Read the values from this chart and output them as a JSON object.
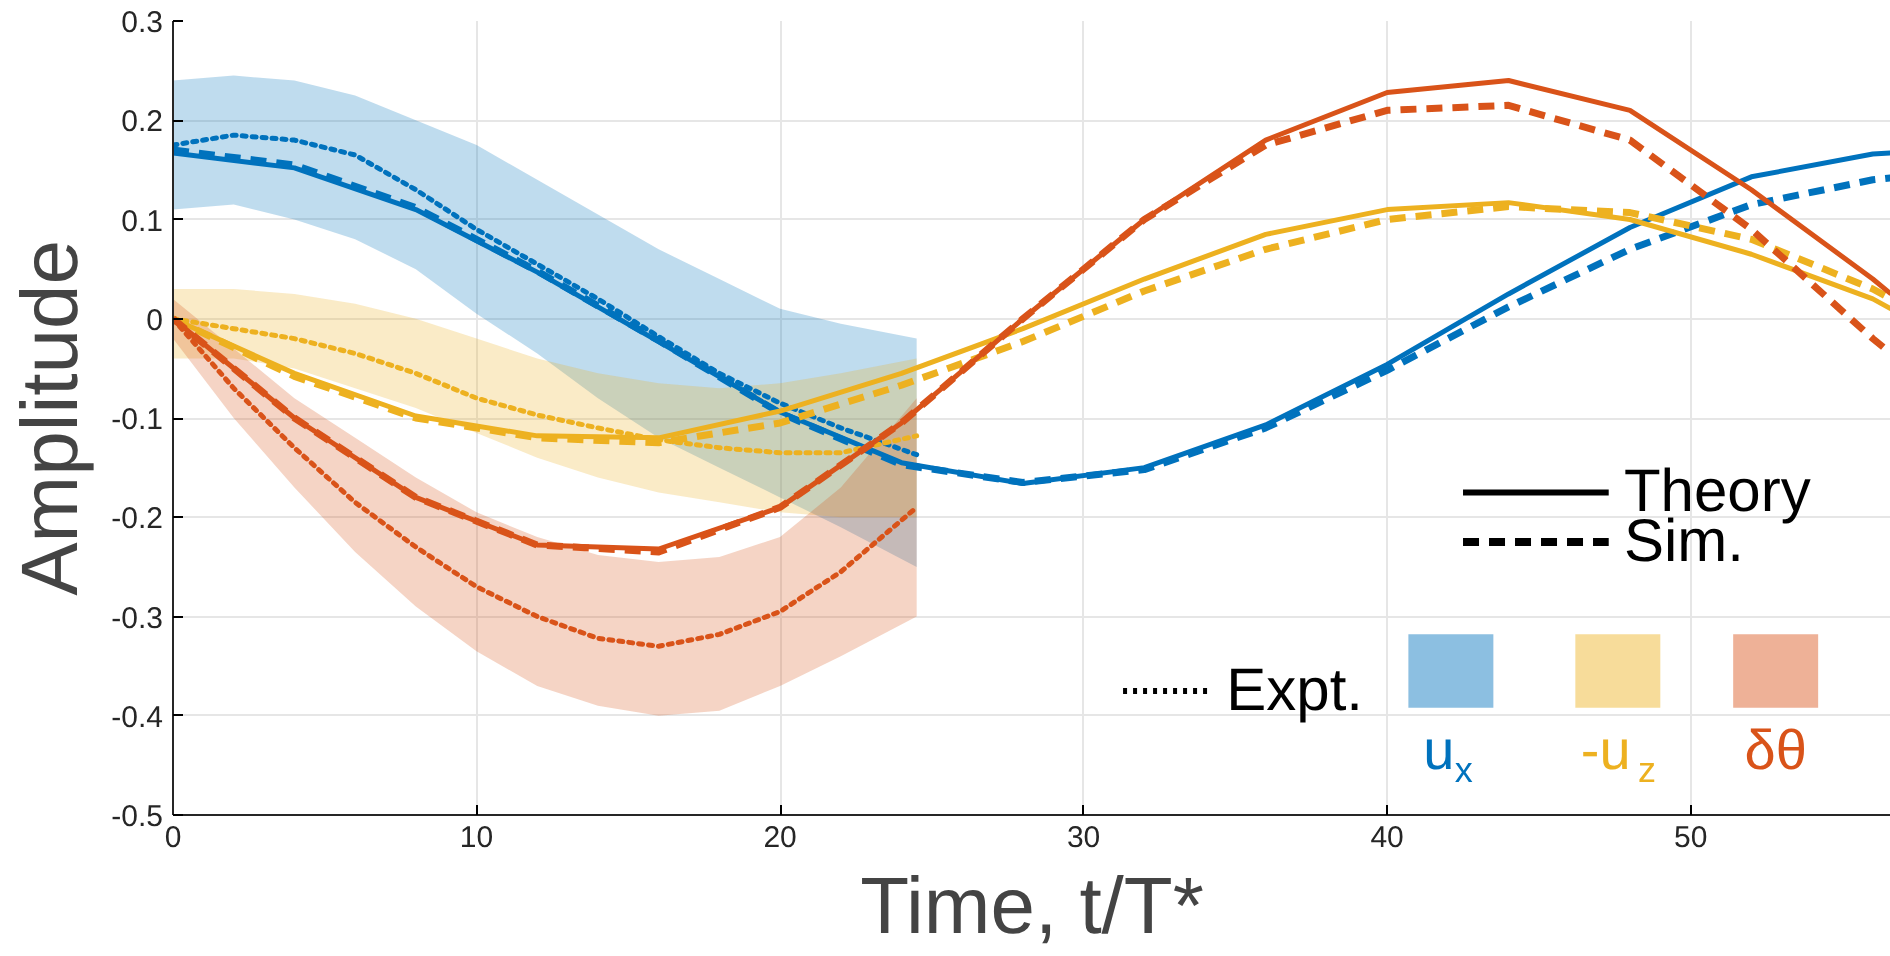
{
  "chart_data": {
    "type": "line",
    "xlabel": "Time, t/T*",
    "ylabel": "Amplitude",
    "xlim": [
      0,
      56.6
    ],
    "ylim": [
      -0.5,
      0.3
    ],
    "xticks": [
      0,
      10,
      20,
      30,
      40,
      50
    ],
    "yticks": [
      -0.5,
      -0.4,
      -0.3,
      -0.2,
      -0.1,
      0,
      0.1,
      0.2,
      0.3
    ],
    "grid": true,
    "x": [
      0,
      4,
      8,
      12,
      16,
      20,
      24,
      28,
      32,
      36,
      40,
      44,
      48,
      52,
      56,
      56.6
    ],
    "series": [
      {
        "color": "#0072bd",
        "line_style": "solid",
        "values": [
          0.167,
          0.152,
          0.11,
          0.047,
          -0.023,
          -0.094,
          -0.145,
          -0.166,
          -0.15,
          -0.107,
          -0.046,
          0.025,
          0.092,
          0.143,
          0.166,
          0.167
        ]
      },
      {
        "color": "#0072bd",
        "line_style": "dashed",
        "values": [
          0.17,
          0.155,
          0.112,
          0.048,
          -0.022,
          -0.095,
          -0.147,
          -0.165,
          -0.152,
          -0.11,
          -0.052,
          0.012,
          0.07,
          0.115,
          0.14,
          0.142
        ]
      },
      {
        "name": "u$_{x}$",
        "color": "#0072bd",
        "line_style": "dotted",
        "x": [
          0,
          2,
          4,
          6,
          8,
          10,
          12,
          14,
          16,
          18,
          20,
          22,
          24.5
        ],
        "values": [
          0.175,
          0.185,
          0.18,
          0.165,
          0.13,
          0.09,
          0.055,
          0.02,
          -0.018,
          -0.055,
          -0.085,
          -0.11,
          -0.137
        ],
        "upper": [
          0.24,
          0.245,
          0.24,
          0.225,
          0.2,
          0.175,
          0.14,
          0.105,
          0.07,
          0.04,
          0.01,
          -0.005,
          -0.02
        ],
        "lower": [
          0.11,
          0.115,
          0.1,
          0.08,
          0.05,
          0.005,
          -0.035,
          -0.08,
          -0.12,
          -0.15,
          -0.18,
          -0.21,
          -0.25
        ]
      },
      {
        "color": "#edb120",
        "line_style": "solid",
        "values": [
          0,
          -0.055,
          -0.098,
          -0.118,
          -0.12,
          -0.093,
          -0.055,
          -0.01,
          0.04,
          0.085,
          0.11,
          0.117,
          0.1,
          0.065,
          0.02,
          0.01
        ]
      },
      {
        "color": "#edb120",
        "line_style": "dashed",
        "values": [
          0,
          -0.058,
          -0.1,
          -0.12,
          -0.125,
          -0.105,
          -0.067,
          -0.023,
          0.028,
          0.07,
          0.1,
          0.113,
          0.107,
          0.08,
          0.03,
          0.02
        ]
      },
      {
        "name": "-u$_{z}$",
        "color": "#edb120",
        "line_style": "dotted",
        "x": [
          0,
          2,
          4,
          6,
          8,
          10,
          12,
          14,
          16,
          18,
          20,
          22,
          24.5
        ],
        "values": [
          0,
          -0.01,
          -0.02,
          -0.035,
          -0.055,
          -0.08,
          -0.097,
          -0.11,
          -0.122,
          -0.13,
          -0.135,
          -0.135,
          -0.118
        ],
        "upper": [
          0.03,
          0.03,
          0.025,
          0.015,
          0.0,
          -0.02,
          -0.04,
          -0.055,
          -0.065,
          -0.07,
          -0.065,
          -0.055,
          -0.04
        ],
        "lower": [
          -0.04,
          -0.04,
          -0.05,
          -0.07,
          -0.09,
          -0.115,
          -0.14,
          -0.16,
          -0.175,
          -0.185,
          -0.195,
          -0.2,
          -0.2
        ]
      },
      {
        "color": "#d95319",
        "line_style": "solid",
        "values": [
          0,
          -0.1,
          -0.18,
          -0.228,
          -0.232,
          -0.19,
          -0.105,
          0.0,
          0.1,
          0.18,
          0.228,
          0.24,
          0.21,
          0.13,
          0.04,
          0.025
        ]
      },
      {
        "color": "#d95319",
        "line_style": "dashed",
        "values": [
          0,
          -0.1,
          -0.18,
          -0.228,
          -0.235,
          -0.19,
          -0.105,
          0.0,
          0.1,
          0.175,
          0.21,
          0.215,
          0.18,
          0.09,
          -0.02,
          -0.035
        ]
      },
      {
        "name": "δθ",
        "color": "#d95319",
        "line_style": "dotted",
        "x": [
          0,
          2,
          4,
          6,
          8,
          10,
          12,
          14,
          16,
          18,
          20,
          22,
          24.5
        ],
        "values": [
          0,
          -0.07,
          -0.13,
          -0.185,
          -0.23,
          -0.27,
          -0.3,
          -0.322,
          -0.33,
          -0.318,
          -0.295,
          -0.255,
          -0.19
        ],
        "upper": [
          0.02,
          -0.03,
          -0.08,
          -0.12,
          -0.16,
          -0.195,
          -0.22,
          -0.238,
          -0.245,
          -0.24,
          -0.22,
          -0.17,
          -0.08
        ],
        "lower": [
          -0.02,
          -0.1,
          -0.17,
          -0.235,
          -0.29,
          -0.335,
          -0.37,
          -0.39,
          -0.4,
          -0.395,
          -0.37,
          -0.34,
          -0.3
        ]
      }
    ],
    "legend": "bottom right",
    "annotations": [
      "Theory",
      "Sim.",
      "Expt."
    ]
  }
}
